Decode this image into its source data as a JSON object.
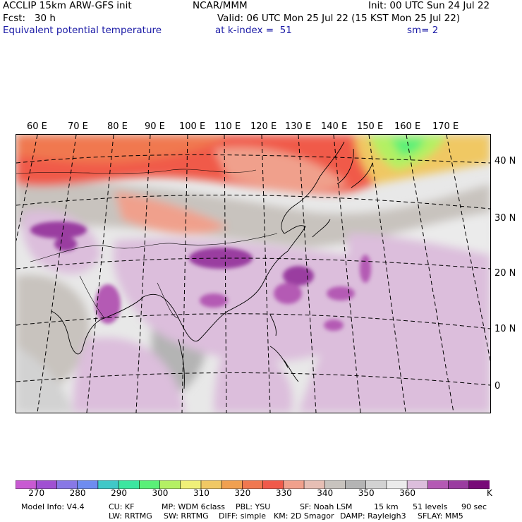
{
  "header": {
    "line1_left": "ACCLIP 15km ARW-GFS init",
    "line1_center": "NCAR/MMM",
    "line1_right": "Init: 00 UTC Sun 24 Jul 22",
    "line2_left": "Fcst:   30 h",
    "line2_right": "Valid: 06 UTC Mon 25 Jul 22 (15 KST Mon 25 Jul 22)",
    "line3_left": "Equivalent potential temperature",
    "line3_mid": "at k-index =  51",
    "line3_right": "sm= 2"
  },
  "map": {
    "lon_labels": [
      "60 E",
      "70 E",
      "80 E",
      "90 E",
      "100 E",
      "110 E",
      "120 E",
      "130 E",
      "140 E",
      "150 E",
      "160 E",
      "170 E"
    ],
    "lat_labels": [
      "40 N",
      "30 N",
      "20 N",
      "10 N",
      "0"
    ]
  },
  "colorbar": {
    "colors": [
      "#c85ad2",
      "#a050d2",
      "#8878e6",
      "#6e8cf0",
      "#40c8c8",
      "#3ce6a0",
      "#5af078",
      "#b4f064",
      "#f0f078",
      "#f0c864",
      "#f0a050",
      "#f07850",
      "#f05a4a",
      "#f0a08c",
      "#e6beb4",
      "#c8c3be",
      "#b4b4b4",
      "#d2d2d2",
      "#ebebeb",
      "#dcbedc",
      "#b45ab4",
      "#9a3ca0",
      "#780a78"
    ],
    "tick_labels": [
      "270",
      "280",
      "290",
      "300",
      "310",
      "320",
      "330",
      "340",
      "350",
      "360"
    ],
    "unit": "K"
  },
  "footer": {
    "line1": [
      "Model Info: V4.4",
      "CU: KF",
      "MP: WDM 6class",
      "PBL: YSU",
      "SF: Noah LSM",
      "15 km",
      "51 levels",
      "90 sec"
    ],
    "line2": [
      "LW: RRTMG",
      "SW: RRTMG",
      "DIFF: simple",
      "KM: 2D Smagor",
      "DAMP: Rayleigh3",
      "SFLAY: MM5"
    ]
  }
}
